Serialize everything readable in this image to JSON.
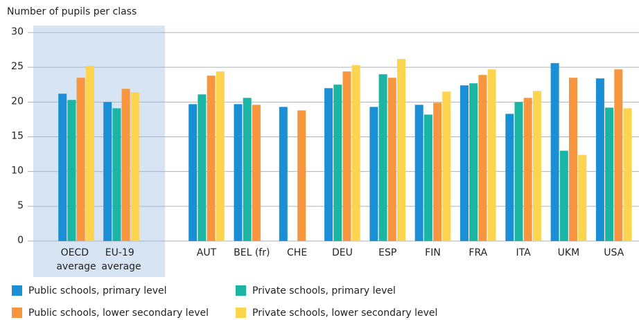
{
  "chart_data": {
    "type": "bar",
    "y_label": "Number of pupils per class",
    "categories": [
      "OECD average",
      "EU-19 average",
      "AUT",
      "BEL (fr)",
      "CHE",
      "DEU",
      "ESP",
      "FIN",
      "FRA",
      "ITA",
      "UKM",
      "USA"
    ],
    "series": [
      {
        "name": "Public schools, primary level",
        "color": "#1b8fd6",
        "values": [
          21.2,
          20.0,
          19.7,
          19.7,
          19.3,
          22.0,
          19.3,
          19.6,
          22.4,
          18.3,
          25.6,
          23.4
        ]
      },
      {
        "name": "Private schools, primary level",
        "color": "#1ab5a3",
        "values": [
          20.3,
          19.1,
          21.1,
          20.6,
          null,
          22.5,
          24.0,
          18.2,
          22.7,
          20.0,
          13.0,
          19.2
        ]
      },
      {
        "name": "Public schools, lower secondary level",
        "color": "#f7963f",
        "values": [
          23.5,
          21.9,
          23.8,
          19.6,
          18.8,
          24.4,
          23.5,
          19.9,
          23.9,
          20.6,
          23.5,
          24.7
        ]
      },
      {
        "name": "Private schools, lower secondary level",
        "color": "#fdd44f",
        "values": [
          25.2,
          21.4,
          24.4,
          null,
          null,
          25.3,
          26.2,
          21.5,
          24.7,
          21.6,
          12.4,
          19.1
        ]
      }
    ],
    "ylim": [
      0,
      30
    ],
    "yticks": [
      0,
      5,
      10,
      15,
      20,
      25,
      30
    ],
    "grid": true
  }
}
